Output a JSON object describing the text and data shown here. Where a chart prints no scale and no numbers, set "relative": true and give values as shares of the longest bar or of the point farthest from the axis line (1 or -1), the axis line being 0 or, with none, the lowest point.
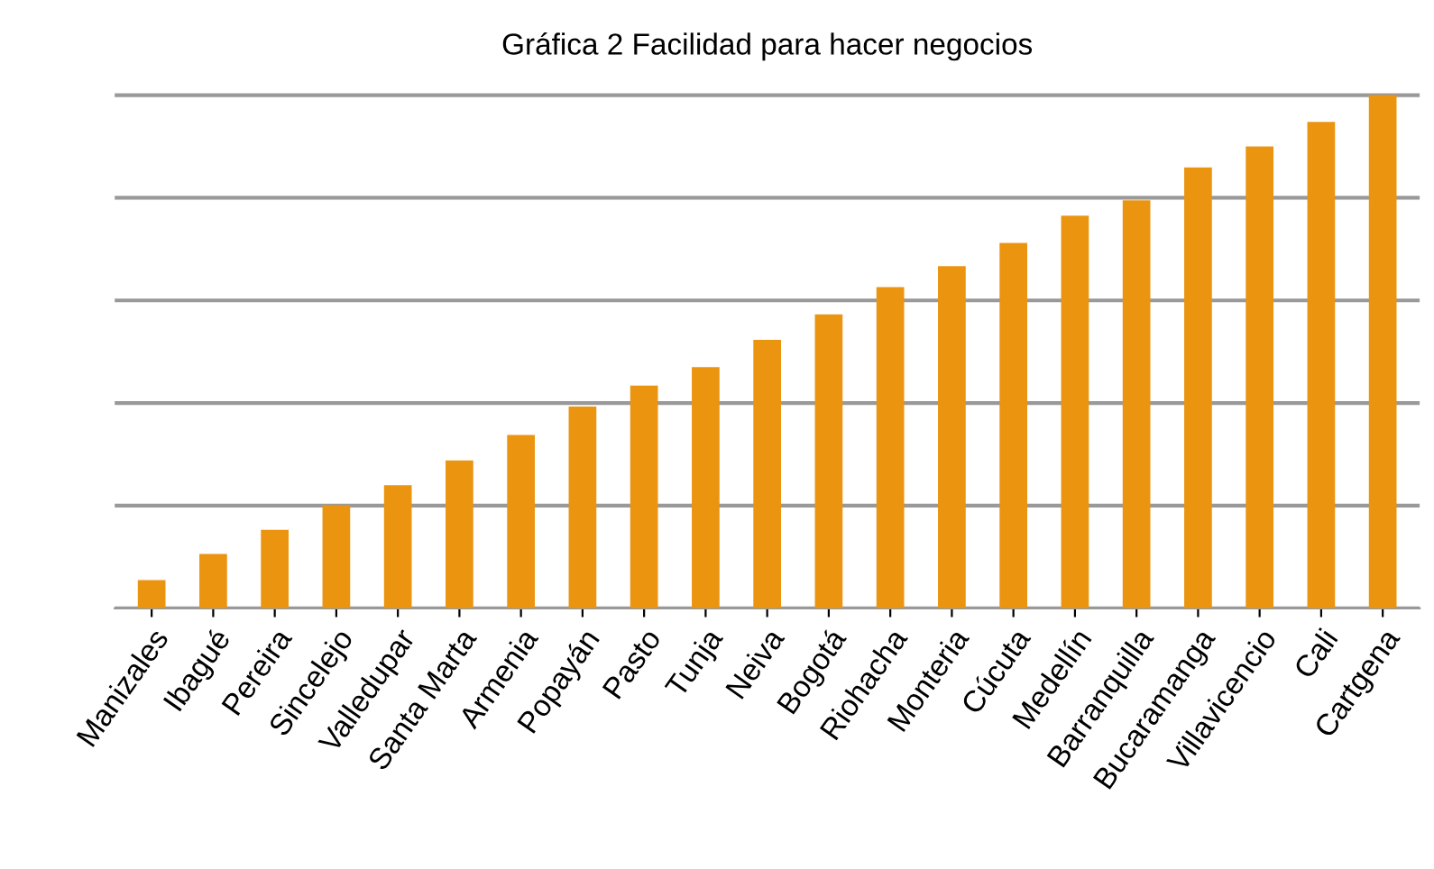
{
  "chart_data": {
    "type": "bar",
    "title": "Gráfica 2 Facilidad para hacer negocios",
    "categories": [
      "Manizales",
      "Ibagué",
      "Pereira",
      "Sincelejo",
      "Valledupar",
      "Santa Marta",
      "Armenia",
      "Popayán",
      "Pasto",
      "Tunja",
      "Neiva",
      "Bogotá",
      "Riohacha",
      "Monteria",
      "Cúcuta",
      "Medellín",
      "Barranquilla",
      "Bucaramanga",
      "Villavicencio",
      "Cali",
      "Cartgena"
    ],
    "values": [
      0.055,
      0.106,
      0.153,
      0.201,
      0.24,
      0.288,
      0.338,
      0.393,
      0.434,
      0.47,
      0.523,
      0.573,
      0.626,
      0.667,
      0.712,
      0.765,
      0.795,
      0.859,
      0.9,
      0.948,
      1
    ],
    "color": "#eb9410",
    "relative": true,
    "grid": "y"
  }
}
